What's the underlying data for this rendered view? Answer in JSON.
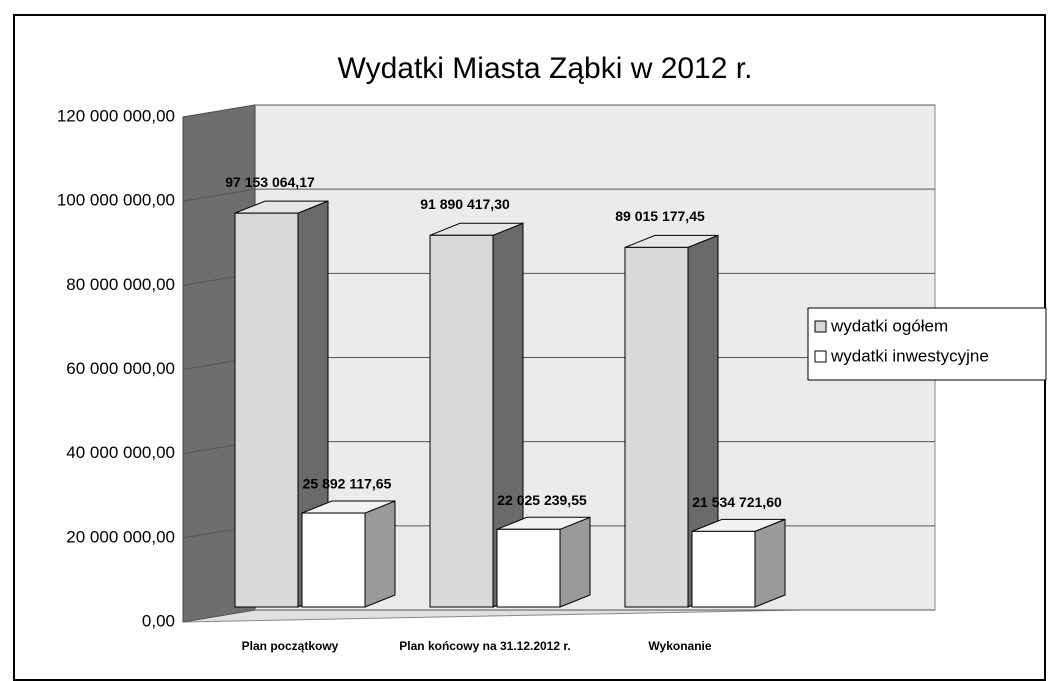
{
  "chart_data": {
    "type": "bar3d",
    "title": "Wydatki Miasta Ząbki w 2012 r.",
    "categories": [
      "Plan początkowy",
      "Plan końcowy na 31.12.2012 r.",
      "Wykonanie"
    ],
    "series": [
      {
        "name": "wydatki ogółem",
        "color": "#d9d9d9",
        "values": [
          97153064.17,
          91890417.3,
          89015177.45
        ],
        "value_labels": [
          "97 153 064,17",
          "91 890 417,30",
          "89 015 177,45"
        ]
      },
      {
        "name": "wydatki inwestycyjne",
        "color": "#ffffff",
        "values": [
          25892117.65,
          22025239.55,
          21534721.6
        ],
        "value_labels": [
          "25 892 117,65",
          "22 025 239,55",
          "21 534 721,60"
        ]
      }
    ],
    "ylim": [
      0,
      120000000
    ],
    "yticks": [
      {
        "value": 0,
        "label": "0,00"
      },
      {
        "value": 20000000,
        "label": "20 000 000,00"
      },
      {
        "value": 40000000,
        "label": "40 000 000,00"
      },
      {
        "value": 60000000,
        "label": "60 000 000,00"
      },
      {
        "value": 80000000,
        "label": "80 000 000,00"
      },
      {
        "value": 100000000,
        "label": "100 000 000,00"
      },
      {
        "value": 120000000,
        "label": "120 000 000,00"
      }
    ],
    "grid": true,
    "legend": "right"
  }
}
